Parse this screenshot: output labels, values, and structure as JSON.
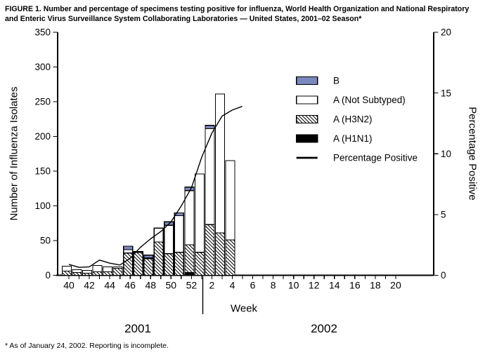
{
  "title": {
    "line1": "FIGURE 1. Number and percentage of specimens testing positive for influenza, World Health Organization and National Respiratory",
    "line2": "and Enteric Virus Surveillance System Collaborating Laboratories — United States, 2001–02 Season*"
  },
  "footnote": "* As of January 24, 2002. Reporting is incomplete.",
  "axes": {
    "left_title": "Number of Influenza Isolates",
    "right_title": "Percentage Positive",
    "x_title": "Week",
    "left_ticks": [
      0,
      50,
      100,
      150,
      200,
      250,
      300,
      350
    ],
    "right_ticks": [
      0,
      5,
      10,
      15,
      20
    ],
    "x_tick_labels": [
      "40",
      "42",
      "44",
      "46",
      "48",
      "50",
      "52",
      "2",
      "4",
      "6",
      "8",
      "10",
      "12",
      "14",
      "16",
      "18",
      "20"
    ],
    "year_left": "2001",
    "year_right": "2002"
  },
  "legend": {
    "items": [
      {
        "key": "b",
        "label": "B"
      },
      {
        "key": "a_ns",
        "label": "A (Not Subtyped)"
      },
      {
        "key": "h3n2",
        "label": "A (H3N2)"
      },
      {
        "key": "h1n1",
        "label": "A (H1N1)"
      },
      {
        "key": "pct",
        "label": "Percentage Positive"
      }
    ]
  },
  "colors": {
    "b_fill": "#7B88BE",
    "a_ns_fill": "#FFFFFF",
    "h1n1_fill": "#000000",
    "line": "#000000",
    "axis": "#000000"
  },
  "chart_data": {
    "type": "bar",
    "subtype": "stacked bars with overlaid line on secondary axis",
    "categories_weeks": [
      "40",
      "41",
      "42",
      "43",
      "44",
      "45",
      "46",
      "47",
      "48",
      "49",
      "50",
      "51",
      "52",
      "1",
      "2",
      "3",
      "4"
    ],
    "series": [
      {
        "name": "A (H1N1)",
        "key": "h1n1",
        "values": [
          0,
          0,
          0,
          0,
          0,
          0,
          0,
          0,
          0,
          0,
          0,
          0,
          4,
          0,
          0,
          0,
          0
        ]
      },
      {
        "name": "A (H3N2)",
        "key": "h3n2",
        "values": [
          6,
          4,
          3,
          5,
          5,
          10,
          32,
          33,
          24,
          48,
          31,
          33,
          40,
          33,
          73,
          61,
          51
        ]
      },
      {
        "name": "A (Not Subtyped)",
        "key": "a_ns",
        "values": [
          7,
          4,
          4,
          9,
          7,
          2,
          5,
          1,
          1,
          20,
          41,
          53,
          78,
          113,
          138,
          200,
          114
        ]
      },
      {
        "name": "B",
        "key": "b",
        "values": [
          0,
          0,
          0,
          0,
          0,
          0,
          5,
          0,
          4,
          0,
          5,
          4,
          5,
          0,
          5,
          0,
          0
        ]
      }
    ],
    "line": {
      "name": "Percentage Positive",
      "values": [
        0.9,
        0.65,
        0.7,
        1.25,
        1.0,
        0.85,
        1.4,
        2.3,
        3.0,
        3.6,
        4.4,
        5.7,
        7.2,
        9.7,
        11.7,
        13.1,
        13.6
      ],
      "tail_pct": 13.9
    },
    "left_axis": {
      "label": "Number of Influenza Isolates",
      "range": [
        0,
        350
      ]
    },
    "right_axis": {
      "label": "Percentage Positive",
      "range": [
        0,
        20
      ]
    },
    "x_axis": {
      "label": "Week",
      "tick_labels_shown": [
        "40",
        "42",
        "44",
        "46",
        "48",
        "50",
        "52",
        "2",
        "4",
        "6",
        "8",
        "10",
        "12",
        "14",
        "16",
        "18",
        "20"
      ]
    },
    "grid": false,
    "legend_position": "upper right inside plot"
  }
}
